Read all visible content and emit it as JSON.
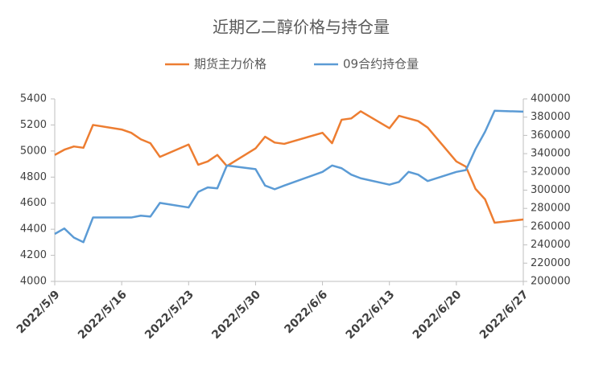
{
  "chart_data": {
    "type": "line",
    "title": "近期乙二醇价格与持仓量",
    "x": [
      "2022/5/9",
      "2022/5/10",
      "2022/5/11",
      "2022/5/12",
      "2022/5/13",
      "2022/5/16",
      "2022/5/17",
      "2022/5/18",
      "2022/5/19",
      "2022/5/20",
      "2022/5/23",
      "2022/5/24",
      "2022/5/25",
      "2022/5/26",
      "2022/5/27",
      "2022/5/30",
      "2022/5/31",
      "2022/6/1",
      "2022/6/2",
      "2022/6/6",
      "2022/6/7",
      "2022/6/8",
      "2022/6/9",
      "2022/6/10",
      "2022/6/13",
      "2022/6/14",
      "2022/6/15",
      "2022/6/16",
      "2022/6/17",
      "2022/6/20",
      "2022/6/21",
      "2022/6/22",
      "2022/6/23",
      "2022/6/24",
      "2022/6/27"
    ],
    "series": [
      {
        "name": "期货主力价格",
        "color": "#ed7d31",
        "values": [
          4970,
          5010,
          5035,
          5025,
          5200,
          5165,
          5140,
          5090,
          5060,
          4955,
          5050,
          4895,
          4920,
          4970,
          4885,
          5020,
          5110,
          5065,
          5055,
          5140,
          5060,
          5240,
          5250,
          5305,
          5175,
          5270,
          5250,
          5230,
          5180,
          4920,
          4880,
          4710,
          4630,
          4450,
          4475
        ]
      },
      {
        "name": "09合约持仓量",
        "color": "#5b9bd5",
        "axis": "y2",
        "values": [
          252000,
          258000,
          248000,
          243000,
          270000,
          270000,
          270000,
          272000,
          271000,
          286000,
          281000,
          298000,
          303000,
          302000,
          327000,
          323000,
          305000,
          301000,
          305000,
          320000,
          327000,
          324000,
          317000,
          313000,
          306000,
          309000,
          320000,
          317000,
          310000,
          320000,
          322000,
          345000,
          364000,
          387000,
          386000
        ]
      }
    ],
    "xlim": [
      "2022/5/9",
      "2022/6/27"
    ],
    "xticks": [
      "2022/5/9",
      "2022/5/16",
      "2022/5/23",
      "2022/5/30",
      "2022/6/6",
      "2022/6/13",
      "2022/6/20",
      "2022/6/27"
    ],
    "ylim": [
      4000,
      5400
    ],
    "yticks": [
      4000,
      4200,
      4400,
      4600,
      4800,
      5000,
      5200,
      5400
    ],
    "y2lim": [
      200000,
      400000
    ],
    "y2ticks": [
      200000,
      220000,
      240000,
      260000,
      280000,
      300000,
      320000,
      340000,
      360000,
      380000,
      400000
    ],
    "legend": "top"
  }
}
